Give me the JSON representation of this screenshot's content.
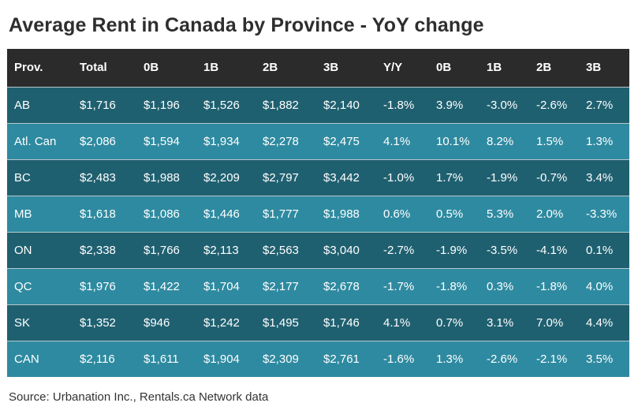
{
  "chart_data": {
    "type": "table",
    "title": "Average Rent in Canada by Province - YoY change",
    "columns": [
      "Prov.",
      "Total",
      "0B",
      "1B",
      "2B",
      "3B",
      "Y/Y",
      "0B",
      "1B",
      "2B",
      "3B"
    ],
    "rows": [
      [
        "AB",
        "$1,716",
        "$1,196",
        "$1,526",
        "$1,882",
        "$2,140",
        "-1.8%",
        "3.9%",
        "-3.0%",
        "-2.6%",
        "2.7%"
      ],
      [
        "Atl. Can",
        "$2,086",
        "$1,594",
        "$1,934",
        "$2,278",
        "$2,475",
        "4.1%",
        "10.1%",
        "8.2%",
        "1.5%",
        "1.3%"
      ],
      [
        "BC",
        "$2,483",
        "$1,988",
        "$2,209",
        "$2,797",
        "$3,442",
        "-1.0%",
        "1.7%",
        "-1.9%",
        "-0.7%",
        "3.4%"
      ],
      [
        "MB",
        "$1,618",
        "$1,086",
        "$1,446",
        "$1,777",
        "$1,988",
        "0.6%",
        "0.5%",
        "5.3%",
        "2.0%",
        "-3.3%"
      ],
      [
        "ON",
        "$2,338",
        "$1,766",
        "$2,113",
        "$2,563",
        "$3,040",
        "-2.7%",
        "-1.9%",
        "-3.5%",
        "-4.1%",
        "0.1%"
      ],
      [
        "QC",
        "$1,976",
        "$1,422",
        "$1,704",
        "$2,177",
        "$2,678",
        "-1.7%",
        "-1.8%",
        "0.3%",
        "-1.8%",
        "4.0%"
      ],
      [
        "SK",
        "$1,352",
        "$946",
        "$1,242",
        "$1,495",
        "$1,746",
        "4.1%",
        "0.7%",
        "3.1%",
        "7.0%",
        "4.4%"
      ],
      [
        "CAN",
        "$2,116",
        "$1,611",
        "$1,904",
        "$2,309",
        "$2,761",
        "-1.6%",
        "1.3%",
        "-2.6%",
        "-2.1%",
        "3.5%"
      ]
    ],
    "source": "Source: Urbanation Inc., Rentals.ca Network data"
  },
  "colors": {
    "header_bg": "#2b2b2b",
    "row_dark": "#1f6070",
    "row_light": "#2e8aa0",
    "text_light": "#ffffff",
    "title_text": "#2e2e2e"
  }
}
